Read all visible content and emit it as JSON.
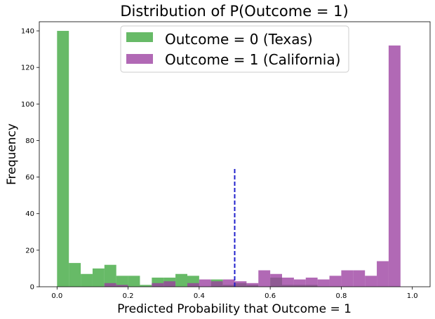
{
  "chart_data": {
    "type": "bar",
    "title": "Distribution of P(Outcome = 1)",
    "xlabel": "Predicted Probability that Outcome = 1",
    "ylabel": "Frequency",
    "xlim": [
      -0.05,
      1.05
    ],
    "ylim": [
      0,
      145
    ],
    "xticks": [
      0.0,
      0.2,
      0.4,
      0.6,
      0.8,
      1.0
    ],
    "xtick_labels": [
      "0.0",
      "0.2",
      "0.4",
      "0.6",
      "0.8",
      "1.0"
    ],
    "yticks": [
      0,
      20,
      40,
      60,
      80,
      100,
      120,
      140
    ],
    "ytick_labels": [
      "0",
      "20",
      "40",
      "60",
      "80",
      "100",
      "120",
      "140"
    ],
    "bin_edges": [
      0.0,
      0.0333,
      0.0667,
      0.1,
      0.1333,
      0.1667,
      0.2,
      0.2333,
      0.2667,
      0.3,
      0.3333,
      0.3667,
      0.4,
      0.4333,
      0.4667,
      0.5,
      0.5333,
      0.5667,
      0.6,
      0.6333,
      0.6667,
      0.7,
      0.7333,
      0.7667,
      0.8,
      0.8333,
      0.8667,
      0.9,
      0.9333,
      0.9667,
      1.0
    ],
    "legend_placement": "upper-center",
    "series": [
      {
        "name": "Outcome = 0 (Texas)",
        "color": "#2ca02c",
        "alpha": 0.72,
        "values": [
          140,
          13,
          7,
          10,
          12,
          6,
          6,
          1,
          5,
          5,
          7,
          6,
          0,
          4,
          1,
          2,
          1,
          0,
          5,
          1,
          1,
          1,
          0,
          0,
          0,
          0,
          0,
          0,
          0,
          0
        ]
      },
      {
        "name": "Outcome = 1 (California)",
        "color": "#9b3fa0",
        "alpha": 0.78,
        "values": [
          0,
          0,
          0,
          0,
          2,
          1,
          0,
          0,
          2,
          3,
          0,
          2,
          4,
          3,
          4,
          3,
          2,
          9,
          7,
          5,
          4,
          5,
          4,
          6,
          9,
          9,
          6,
          14,
          132,
          0
        ]
      }
    ],
    "threshold_line": {
      "x": 0.5,
      "y_top": 65,
      "color": "#2020cc",
      "style": "dashed"
    }
  }
}
